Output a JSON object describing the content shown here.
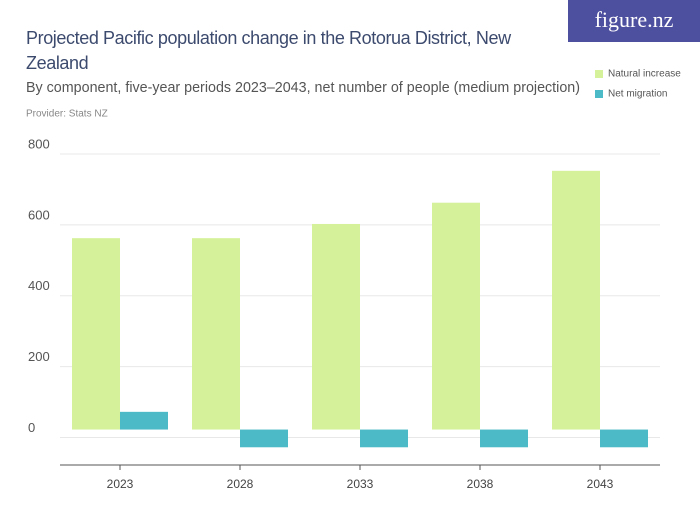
{
  "brand": "figure.nz",
  "chart_data": {
    "type": "bar",
    "title": "Projected Pacific population change in the Rotorua District, New Zealand",
    "subtitle": "By component, five-year periods 2023–2043, net number of people (medium projection)",
    "provider": "Provider: Stats NZ",
    "categories": [
      "2023",
      "2028",
      "2033",
      "2038",
      "2043"
    ],
    "series": [
      {
        "name": "Natural increase",
        "color": "#d5f29b",
        "values": [
          540,
          540,
          580,
          640,
          730
        ]
      },
      {
        "name": "Net migration",
        "color": "#4dbac7",
        "values": [
          50,
          -50,
          -50,
          -50,
          -50
        ]
      }
    ],
    "ylim": [
      -100,
      800
    ],
    "yticks": [
      0,
      200,
      400,
      600,
      800
    ],
    "grid": true,
    "legend": "top-right"
  }
}
